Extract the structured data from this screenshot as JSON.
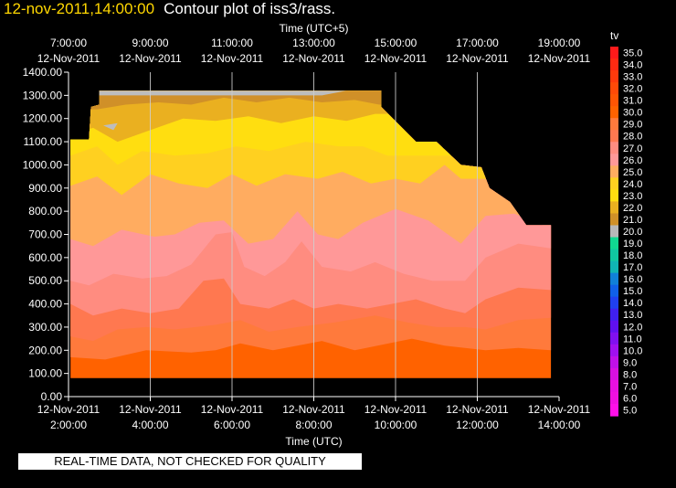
{
  "title": {
    "timestamp": "12-nov-2011,14:00:00",
    "text": "Contour plot of iss3/rass."
  },
  "chart_data": {
    "type": "contour",
    "variable": "tv",
    "top_axis": {
      "label": "Time (UTC+5)",
      "ticks": [
        {
          "hour": 7,
          "time": "7:00:00",
          "date": "12-Nov-2011"
        },
        {
          "hour": 9,
          "time": "9:00:00",
          "date": "12-Nov-2011"
        },
        {
          "hour": 11,
          "time": "11:00:00",
          "date": "12-Nov-2011"
        },
        {
          "hour": 13,
          "time": "13:00:00",
          "date": "12-Nov-2011"
        },
        {
          "hour": 15,
          "time": "15:00:00",
          "date": "12-Nov-2011"
        },
        {
          "hour": 17,
          "time": "17:00:00",
          "date": "12-Nov-2011"
        },
        {
          "hour": 19,
          "time": "19:00:00",
          "date": "12-Nov-2011"
        }
      ]
    },
    "bottom_axis": {
      "label": "Time (UTC)",
      "range": [
        2,
        14
      ],
      "ticks": [
        {
          "hour": 2,
          "date": "12-Nov-2011",
          "time": "2:00:00"
        },
        {
          "hour": 4,
          "date": "12-Nov-2011",
          "time": "4:00:00"
        },
        {
          "hour": 6,
          "date": "12-Nov-2011",
          "time": "6:00:00"
        },
        {
          "hour": 8,
          "date": "12-Nov-2011",
          "time": "8:00:00"
        },
        {
          "hour": 10,
          "date": "12-Nov-2011",
          "time": "10:00:00"
        },
        {
          "hour": 12,
          "date": "12-Nov-2011",
          "time": "12:00:00"
        },
        {
          "hour": 14,
          "date": "12-Nov-2011",
          "time": "14:00:00"
        }
      ]
    },
    "y_axis": {
      "range": [
        0,
        1400
      ],
      "ticks": [
        "0.00",
        "100.00",
        "200.00",
        "300.00",
        "400.00",
        "500.00",
        "600.00",
        "700.00",
        "800.00",
        "900.00",
        "1000.00",
        "1100.00",
        "1200.00",
        "1300.00",
        "1400.00"
      ]
    },
    "color_scale": {
      "title": "tv",
      "levels": [
        {
          "label": "35.0",
          "color": "#ff1a1a"
        },
        {
          "label": "34.0",
          "color": "#ff2a12"
        },
        {
          "label": "33.0",
          "color": "#ff3a0c"
        },
        {
          "label": "32.0",
          "color": "#ff4a08"
        },
        {
          "label": "31.0",
          "color": "#ff5504"
        },
        {
          "label": "30.0",
          "color": "#ff6200"
        },
        {
          "label": "29.0",
          "color": "#ff7a3c"
        },
        {
          "label": "28.0",
          "color": "#ff7850"
        },
        {
          "label": "27.0",
          "color": "#ff8c80"
        },
        {
          "label": "26.0",
          "color": "#ff9898"
        },
        {
          "label": "25.0",
          "color": "#ffac60"
        },
        {
          "label": "24.0",
          "color": "#ffd020"
        },
        {
          "label": "23.0",
          "color": "#ffde10"
        },
        {
          "label": "22.0",
          "color": "#eab020"
        },
        {
          "label": "21.0",
          "color": "#d09028"
        },
        {
          "label": "20.0",
          "color": "#b8b8b8"
        },
        {
          "label": "19.0",
          "color": "#10d890"
        },
        {
          "label": "18.0",
          "color": "#10c8a0"
        },
        {
          "label": "17.0",
          "color": "#10b4b4"
        },
        {
          "label": "16.0",
          "color": "#1080d8"
        },
        {
          "label": "15.0",
          "color": "#1060e8"
        },
        {
          "label": "14.0",
          "color": "#2040f0"
        },
        {
          "label": "13.0",
          "color": "#4020f0"
        },
        {
          "label": "12.0",
          "color": "#6010f0"
        },
        {
          "label": "11.0",
          "color": "#8010f0"
        },
        {
          "label": "10.0",
          "color": "#a010f0"
        },
        {
          "label": "9.0",
          "color": "#c010e8"
        },
        {
          "label": "8.0",
          "color": "#d810e0"
        },
        {
          "label": "7.0",
          "color": "#e810e0"
        },
        {
          "label": "6.0",
          "color": "#f010e0"
        },
        {
          "label": "5.0",
          "color": "#ff10e8"
        }
      ]
    },
    "bands": [
      {
        "level": "29.0",
        "color": "#ff7a3c",
        "top": [
          [
            2.05,
            170
          ],
          [
            2.9,
            160
          ],
          [
            3.9,
            200
          ],
          [
            5.0,
            190
          ],
          [
            5.6,
            200
          ],
          [
            6.2,
            230
          ],
          [
            7.0,
            200
          ],
          [
            8.2,
            240
          ],
          [
            9.0,
            200
          ],
          [
            10.4,
            250
          ],
          [
            11.2,
            220
          ],
          [
            12.2,
            200
          ],
          [
            13.0,
            210
          ],
          [
            13.8,
            200
          ]
        ]
      },
      {
        "level": "28.0",
        "color": "#ff7850",
        "top": [
          [
            2.05,
            260
          ],
          [
            2.6,
            240
          ],
          [
            3.2,
            290
          ],
          [
            3.9,
            300
          ],
          [
            4.6,
            290
          ],
          [
            5.6,
            310
          ],
          [
            6.2,
            330
          ],
          [
            6.9,
            280
          ],
          [
            7.6,
            300
          ],
          [
            8.5,
            320
          ],
          [
            9.5,
            350
          ],
          [
            10.3,
            320
          ],
          [
            11.0,
            300
          ],
          [
            11.7,
            300
          ],
          [
            12.2,
            290
          ],
          [
            13.0,
            330
          ],
          [
            13.8,
            340
          ]
        ]
      },
      {
        "level": "27.0",
        "color": "#ff8c80",
        "top": [
          [
            2.05,
            400
          ],
          [
            2.6,
            350
          ],
          [
            3.3,
            380
          ],
          [
            4.0,
            360
          ],
          [
            4.7,
            380
          ],
          [
            5.3,
            500
          ],
          [
            5.8,
            510
          ],
          [
            6.2,
            400
          ],
          [
            6.9,
            380
          ],
          [
            7.5,
            420
          ],
          [
            8.0,
            380
          ],
          [
            8.6,
            400
          ],
          [
            9.3,
            380
          ],
          [
            9.9,
            400
          ],
          [
            10.5,
            420
          ],
          [
            11.2,
            380
          ],
          [
            11.7,
            360
          ],
          [
            12.2,
            420
          ],
          [
            13.0,
            470
          ],
          [
            13.8,
            460
          ]
        ]
      },
      {
        "level": "26.0",
        "color": "#ff9898",
        "top": [
          [
            2.05,
            500
          ],
          [
            2.5,
            480
          ],
          [
            3.1,
            530
          ],
          [
            3.8,
            510
          ],
          [
            4.4,
            520
          ],
          [
            5.0,
            570
          ],
          [
            5.6,
            700
          ],
          [
            6.0,
            710
          ],
          [
            6.3,
            560
          ],
          [
            6.8,
            520
          ],
          [
            7.3,
            580
          ],
          [
            7.7,
            670
          ],
          [
            8.2,
            560
          ],
          [
            8.9,
            540
          ],
          [
            9.5,
            580
          ],
          [
            10.2,
            530
          ],
          [
            10.9,
            500
          ],
          [
            11.7,
            500
          ],
          [
            12.2,
            600
          ],
          [
            13.0,
            660
          ],
          [
            13.8,
            640
          ]
        ]
      },
      {
        "level": "25.0",
        "color": "#ffac60",
        "top": [
          [
            2.05,
            680
          ],
          [
            2.6,
            650
          ],
          [
            3.3,
            720
          ],
          [
            4.1,
            690
          ],
          [
            4.6,
            700
          ],
          [
            5.2,
            750
          ],
          [
            5.8,
            760
          ],
          [
            6.4,
            660
          ],
          [
            7.0,
            680
          ],
          [
            7.6,
            800
          ],
          [
            8.1,
            700
          ],
          [
            8.6,
            680
          ],
          [
            9.2,
            750
          ],
          [
            10.0,
            810
          ],
          [
            10.8,
            760
          ],
          [
            11.6,
            660
          ],
          [
            12.2,
            780
          ],
          [
            12.9,
            790
          ],
          [
            13.6,
            740
          ]
        ]
      },
      {
        "level": "24.0",
        "color": "#ffd020",
        "top": [
          [
            2.05,
            910
          ],
          [
            2.7,
            950
          ],
          [
            3.3,
            870
          ],
          [
            4.0,
            960
          ],
          [
            4.7,
            920
          ],
          [
            5.4,
            900
          ],
          [
            6.0,
            960
          ],
          [
            6.6,
            910
          ],
          [
            7.3,
            960
          ],
          [
            8.1,
            940
          ],
          [
            8.7,
            970
          ],
          [
            9.4,
            920
          ],
          [
            10.0,
            940
          ],
          [
            10.6,
            920
          ],
          [
            11.2,
            1000
          ],
          [
            11.6,
            940
          ]
        ]
      },
      {
        "level": "23.0",
        "color": "#ffde10",
        "top": [
          [
            2.05,
            1040
          ],
          [
            2.7,
            1080
          ],
          [
            3.2,
            1000
          ],
          [
            3.8,
            1060
          ],
          [
            4.6,
            1040
          ],
          [
            5.4,
            1050
          ],
          [
            6.1,
            1080
          ],
          [
            6.9,
            1060
          ],
          [
            7.8,
            1100
          ],
          [
            8.6,
            1080
          ],
          [
            9.2,
            1080
          ],
          [
            9.8,
            1040
          ]
        ]
      },
      {
        "level": "22.0",
        "color": "#eab020",
        "top": [
          [
            2.05,
            1130
          ],
          [
            2.6,
            1160
          ],
          [
            3.2,
            1100
          ],
          [
            4.0,
            1150
          ],
          [
            4.8,
            1200
          ],
          [
            5.6,
            1190
          ],
          [
            6.4,
            1210
          ],
          [
            7.2,
            1180
          ],
          [
            8.0,
            1210
          ],
          [
            8.8,
            1190
          ],
          [
            9.5,
            1220
          ]
        ]
      },
      {
        "level": "21.0",
        "color": "#d09028",
        "top": [
          [
            2.7,
            1240
          ],
          [
            3.4,
            1260
          ],
          [
            4.2,
            1270
          ],
          [
            5.0,
            1260
          ],
          [
            5.8,
            1290
          ],
          [
            6.6,
            1270
          ],
          [
            7.4,
            1290
          ],
          [
            8.2,
            1270
          ],
          [
            9.0,
            1280
          ],
          [
            9.6,
            1260
          ]
        ]
      }
    ],
    "data_boundary": [
      [
        2.05,
        80
      ],
      [
        2.05,
        1110
      ],
      [
        2.5,
        1110
      ],
      [
        2.55,
        1250
      ],
      [
        2.75,
        1260
      ],
      [
        2.75,
        1320
      ],
      [
        9.65,
        1320
      ],
      [
        9.65,
        1250
      ],
      [
        10.5,
        1100
      ],
      [
        11.0,
        1100
      ],
      [
        11.6,
        1000
      ],
      [
        12.1,
        990
      ],
      [
        12.3,
        900
      ],
      [
        12.8,
        840
      ],
      [
        13.2,
        740
      ],
      [
        13.8,
        740
      ],
      [
        13.8,
        80
      ]
    ],
    "gray_patches": [
      [
        [
          2.75,
          1300
        ],
        [
          8.2,
          1300
        ],
        [
          8.8,
          1320
        ],
        [
          2.75,
          1320
        ]
      ],
      [
        [
          2.85,
          1170
        ],
        [
          3.2,
          1180
        ],
        [
          3.1,
          1150
        ]
      ]
    ]
  },
  "footer": {
    "quality_notice": "REAL-TIME DATA, NOT CHECKED FOR QUALITY"
  }
}
